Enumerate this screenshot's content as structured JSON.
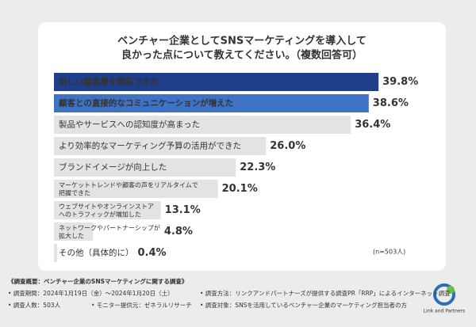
{
  "chart_data": {
    "type": "bar",
    "orientation": "horizontal",
    "title": [
      "ベンチャー企業としてSNSマーケティングを導入して",
      "良かった点について教えてください。（複数回答可）"
    ],
    "categories": [
      "新しい顧客層を開拓できた",
      "顧客との直接的なコミュニケーションが増えた",
      "製品やサービスへの認知度が高まった",
      "より効率的なマーケティング予算の活用ができた",
      "ブランドイメージが向上した",
      "マーケットトレンドや顧客の声をリアルタイムで\n把握できた",
      "ウェブサイトやオンラインストア\nへのトラフィックが増加した",
      "ネットワークやパートナーシップが\n拡大した",
      "その他（具体的に）"
    ],
    "values": [
      39.8,
      38.6,
      36.4,
      26.0,
      22.3,
      20.1,
      13.1,
      4.8,
      0.4
    ],
    "value_labels": [
      "39.8%",
      "38.6%",
      "36.4%",
      "26.0%",
      "22.3%",
      "20.1%",
      "13.1%",
      "4.8%",
      "0.4%"
    ],
    "colors": [
      "#1f3f8a",
      "#3d72c4",
      "#e3e3e3",
      "#e3e3e3",
      "#e3e3e3",
      "#e3e3e3",
      "#e3e3e3",
      "#e3e3e3",
      "#e3e3e3"
    ],
    "note": "(n=503人)"
  },
  "survey": {
    "heading": "《調査概要：ベンチャー企業のSNSマーケティングに関する調査》",
    "items": [
      "• 調査期間：2024年1月19日（金）〜2024年1月20日（土）",
      "• 調査方法：リンクアンドパートナーズが提供する調査PR「RRP」によるインターネット調査",
      "• 調査人数：503人",
      "• モニター提供元：ゼネラルリサーチ",
      "• 調査対象：SNSを活用しているベンチャー企業のマーケティング担当者の方"
    ]
  },
  "logo": "Link and Partners"
}
